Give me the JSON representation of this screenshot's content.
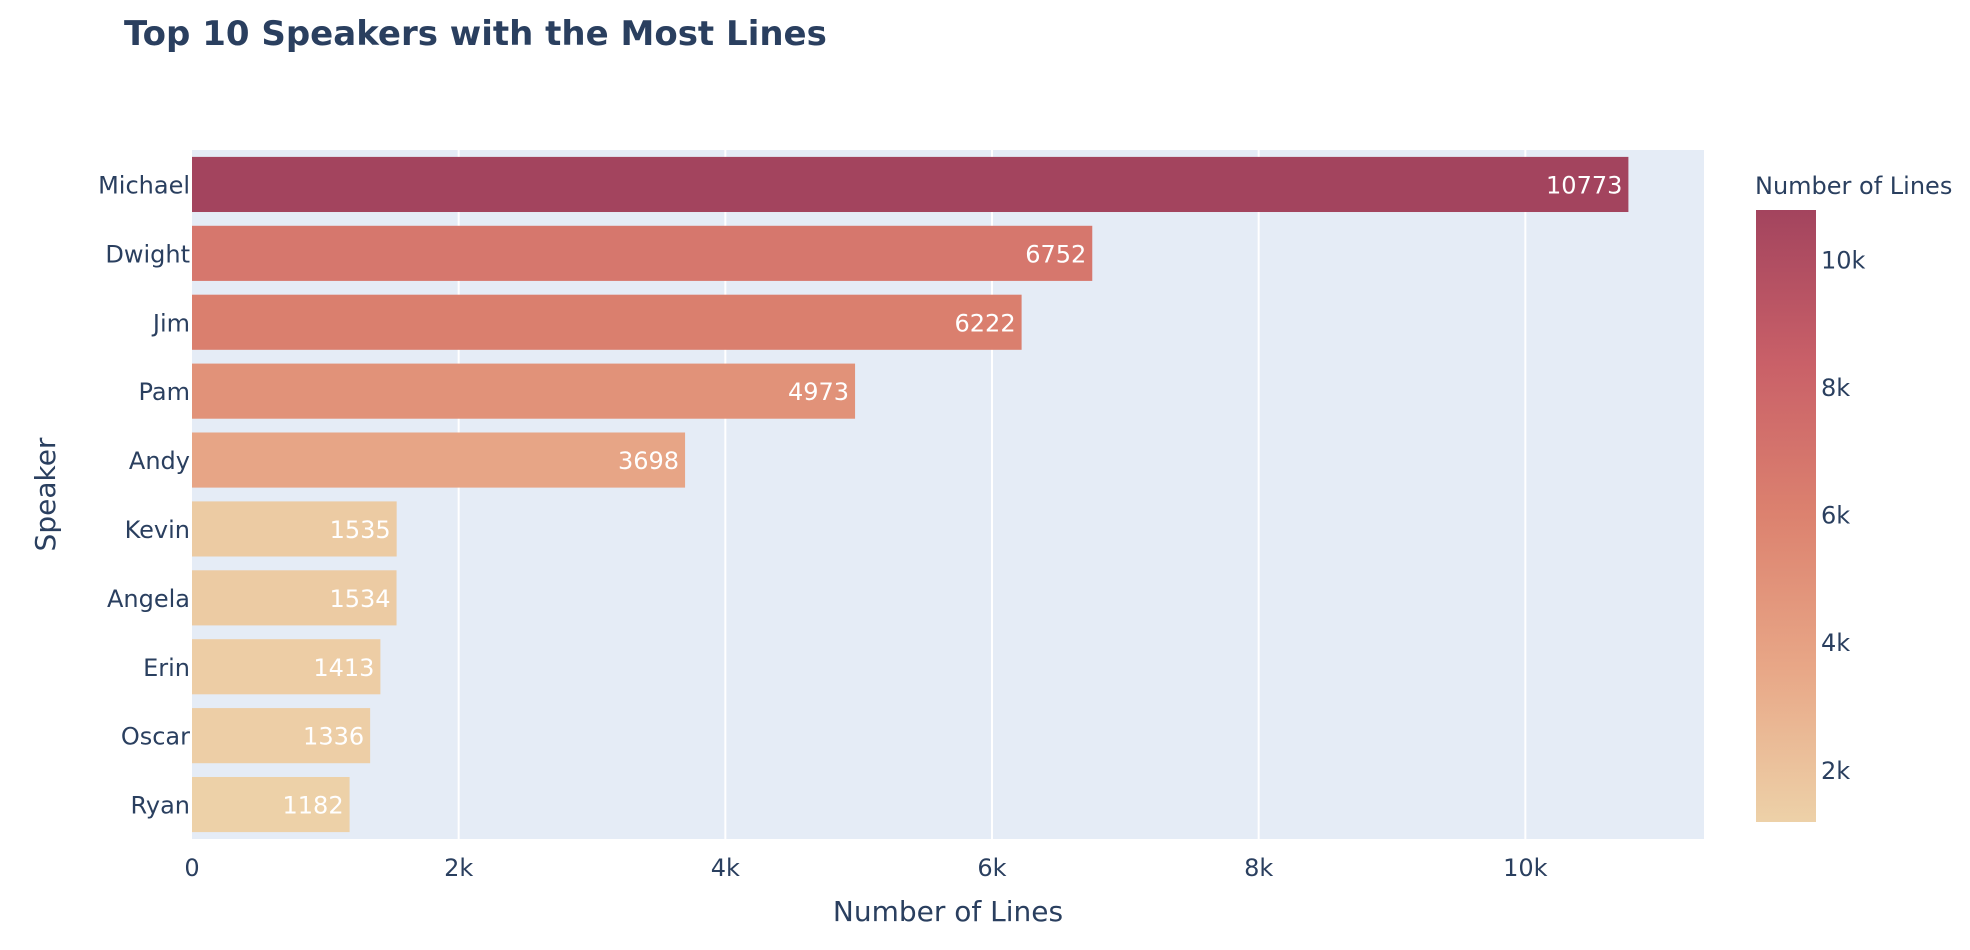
{
  "chart_data": {
    "type": "bar",
    "orientation": "horizontal",
    "title": "Top 10 Speakers with the Most Lines",
    "xlabel": "Number of Lines",
    "ylabel": "Speaker",
    "categories": [
      "Michael",
      "Dwight",
      "Jim",
      "Pam",
      "Andy",
      "Kevin",
      "Angela",
      "Erin",
      "Oscar",
      "Ryan"
    ],
    "values": [
      10773,
      6752,
      6222,
      4973,
      3698,
      1535,
      1534,
      1413,
      1336,
      1182
    ],
    "xlim": [
      0,
      11340
    ],
    "xticks": [
      0,
      2000,
      4000,
      6000,
      8000,
      10000
    ],
    "xtick_labels": [
      "0",
      "2k",
      "4k",
      "6k",
      "8k",
      "10k"
    ],
    "grid": true,
    "plot_background": "#e5ecf6",
    "colorbar": {
      "title": "Number of Lines",
      "range": [
        1182,
        10773
      ],
      "ticks": [
        2000,
        4000,
        6000,
        8000,
        10000
      ],
      "tick_labels": [
        "2k",
        "4k",
        "6k",
        "8k",
        "10k"
      ],
      "colors": [
        "#edd1a8",
        "#e8a787",
        "#dc826f",
        "#c96068",
        "#a3445e"
      ]
    }
  }
}
